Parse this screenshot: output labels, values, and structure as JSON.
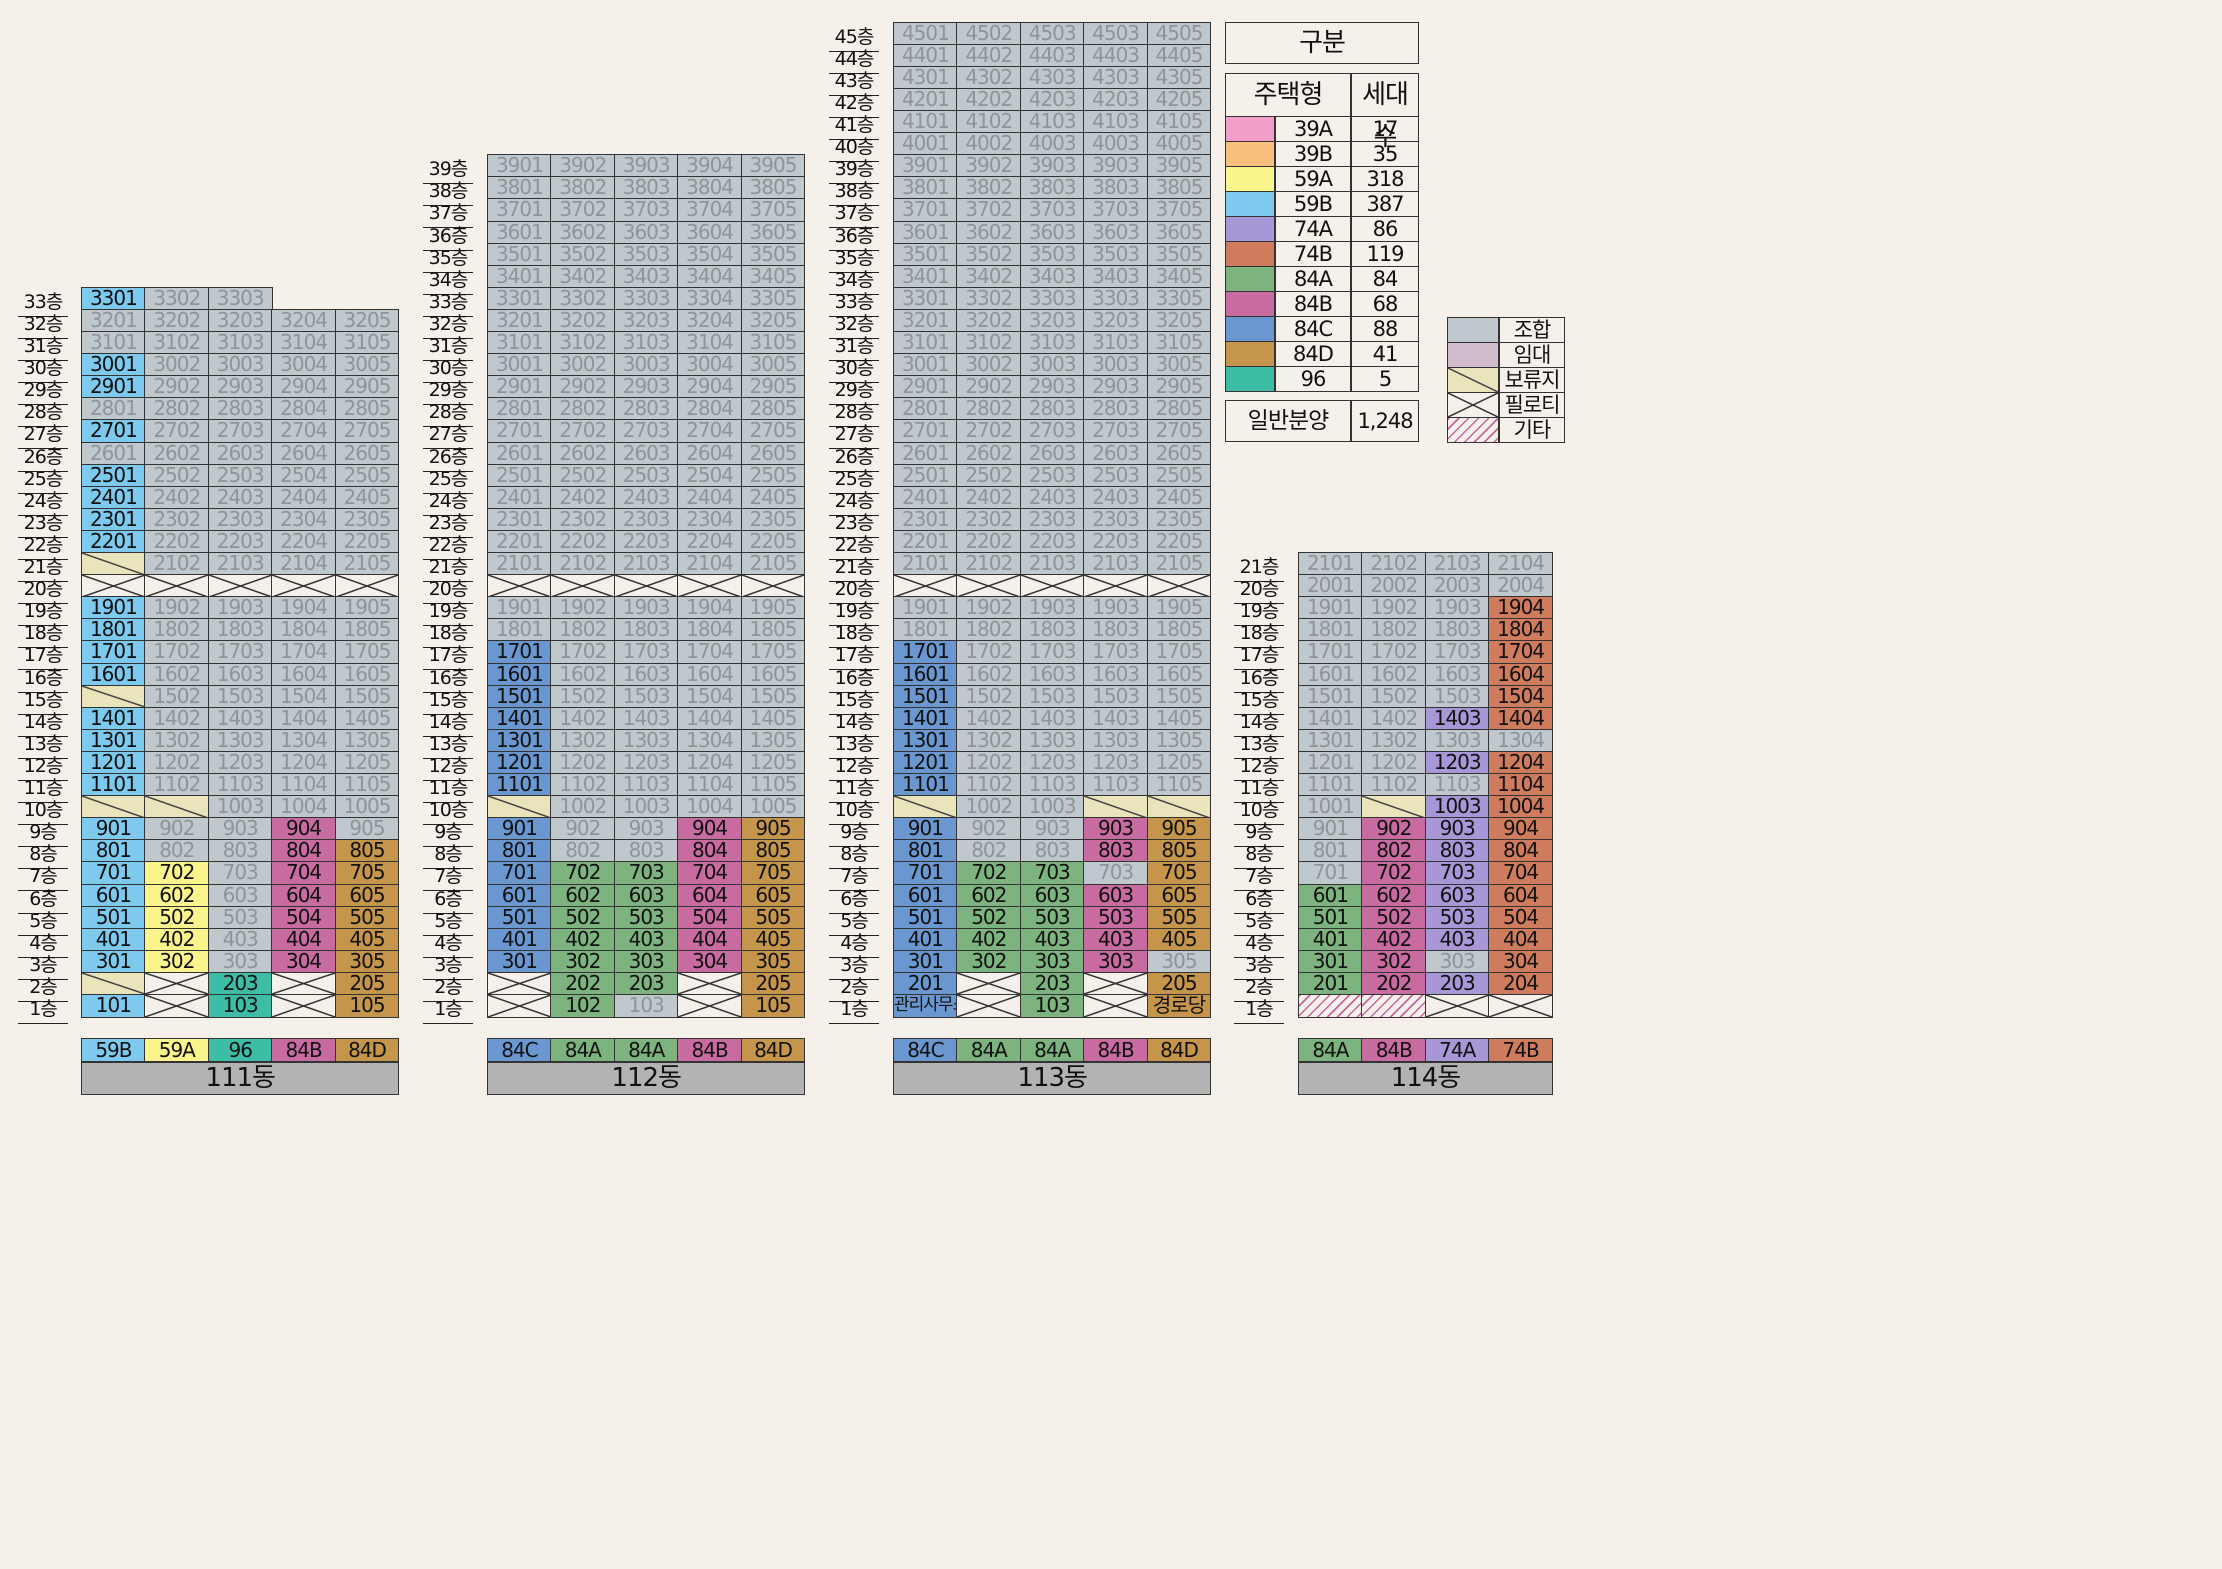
{
  "colors": {
    "39A": "#f39ec8",
    "39B": "#f8c07c",
    "59A": "#f9f58c",
    "59B": "#7ec9ee",
    "74A": "#a897d6",
    "74B": "#cf7b5e",
    "84A": "#7db37e",
    "84B": "#c86ba0",
    "84C": "#6b97d0",
    "84D": "#c4954b",
    "96": "#3dbda5",
    "g": "#bfc8cd",
    "rent": "#d2bccb",
    "res": "#e9e4bb",
    "bg": "#f5f0ea"
  },
  "buildings": [
    {
      "id": "111",
      "name": "111동",
      "top_floor": 33,
      "cols": 5,
      "types": [
        "59B",
        "59A",
        "96",
        "84B",
        "84D"
      ],
      "specials": {
        "21": [
          "res"
        ],
        "20": [
          "pil",
          "pil",
          "pil",
          "pil",
          "pil"
        ],
        "15": [
          "res"
        ],
        "10": [
          "res",
          "res"
        ],
        "2": [
          "res",
          "pil",
          "96:203",
          "pil",
          "84D:205"
        ],
        "1": [
          "59B:101",
          "pil",
          "96:103",
          "pil",
          "84D:105"
        ]
      },
      "colored": {
        "59B": [
          1,
          [
            33,
            30,
            29,
            27,
            25,
            24,
            23,
            22,
            19,
            18,
            17,
            16,
            14,
            13,
            12,
            11,
            9,
            8,
            7,
            6,
            5,
            4,
            3
          ]
        ],
        "59A": [
          2,
          [
            7,
            6,
            5,
            4,
            3
          ]
        ],
        "84B": [
          4,
          [
            9,
            8,
            7,
            6,
            5,
            4,
            3
          ]
        ],
        "84D": [
          5,
          [
            8,
            7,
            6,
            5,
            4,
            3
          ]
        ]
      },
      "top_cols": {
        "33": 3
      }
    },
    {
      "id": "112",
      "name": "112동",
      "top_floor": 39,
      "cols": 5,
      "types": [
        "84C",
        "84A",
        "84A",
        "84B",
        "84D"
      ],
      "specials": {
        "20": [
          "pil",
          "pil",
          "pil",
          "pil",
          "pil"
        ],
        "10": [
          "res"
        ],
        "2": [
          "pil",
          "84A:202",
          "84A:203",
          "pil",
          "84D:205"
        ],
        "1": [
          "pil",
          "84A:102",
          "g:103",
          "pil",
          "84D:105"
        ]
      },
      "colored": {
        "84C": [
          1,
          [
            17,
            16,
            15,
            14,
            13,
            12,
            11,
            9,
            8,
            7,
            6,
            5,
            4,
            3
          ]
        ],
        "84A": [
          2,
          [
            7,
            6,
            5,
            4,
            3
          ]
        ],
        "84A2": [
          3,
          [
            7,
            6,
            5,
            4,
            3
          ]
        ],
        "84B": [
          4,
          [
            9,
            8,
            7,
            6,
            5,
            4,
            3
          ]
        ],
        "84D": [
          5,
          [
            9,
            8,
            7,
            6,
            5,
            4,
            3
          ]
        ]
      },
      "top_cols": {}
    },
    {
      "id": "113",
      "name": "113동",
      "top_floor": 45,
      "cols": 5,
      "types": [
        "84C",
        "84A",
        "84A",
        "84B",
        "84D"
      ],
      "specials": {
        "20": [
          "pil",
          "pil",
          "pil",
          "pil",
          "pil"
        ],
        "10": [
          "res",
          null,
          null,
          "res",
          "res"
        ],
        "3": [
          null,
          null,
          null,
          null,
          "g:305"
        ],
        "2": [
          "84C:201",
          "pil",
          "84A:203",
          "pil",
          "84D:205"
        ],
        "1": [
          "84C:관리사무소",
          "pil",
          "84A:103",
          "pil",
          "84D:경로당"
        ]
      },
      "colored": {
        "84C": [
          1,
          [
            17,
            16,
            15,
            14,
            13,
            12,
            11,
            9,
            8,
            7,
            6,
            5,
            4,
            3
          ]
        ],
        "84A": [
          2,
          [
            7,
            6,
            5,
            4,
            3
          ]
        ],
        "84A2": [
          3,
          [
            7,
            6,
            5,
            4,
            3
          ]
        ],
        "84B": [
          4,
          [
            9,
            8,
            6,
            5,
            4,
            3
          ]
        ],
        "84D": [
          5,
          [
            9,
            8,
            7,
            6,
            5,
            4
          ]
        ]
      },
      "top_cols": {}
    },
    {
      "id": "114",
      "name": "114동",
      "top_floor": 21,
      "cols": 4,
      "types": [
        "84A",
        "84B",
        "74A",
        "74B"
      ],
      "specials": {
        "10": [
          null,
          "res"
        ],
        "1": [
          "etc",
          "etc",
          "pil",
          "pil"
        ]
      },
      "colored": {
        "84A": [
          1,
          [
            6,
            5,
            4,
            3,
            2
          ]
        ],
        "84B": [
          2,
          [
            9,
            8,
            7,
            6,
            5,
            4,
            3,
            2
          ]
        ],
        "74A": [
          3,
          [
            14,
            12,
            10,
            9,
            8,
            7,
            6,
            5,
            4,
            2
          ]
        ],
        "74B": [
          4,
          [
            19,
            18,
            17,
            16,
            15,
            14,
            12,
            11,
            10,
            9,
            8,
            7,
            6,
            5,
            4,
            3,
            2
          ]
        ]
      },
      "top_cols": {}
    }
  ],
  "unit_numbers_note": "unit label = floor number followed by 2-digit line number (e.g. 1701); 113동 repeats line 03 in the 4th column (e.g. 3303)",
  "legend": {
    "header": "구분",
    "col_type": "주택형",
    "col_count": "세대수",
    "rows": [
      {
        "type": "39A",
        "count": "17"
      },
      {
        "type": "39B",
        "count": "35"
      },
      {
        "type": "59A",
        "count": "318"
      },
      {
        "type": "59B",
        "count": "387"
      },
      {
        "type": "74A",
        "count": "86"
      },
      {
        "type": "74B",
        "count": "119"
      },
      {
        "type": "84A",
        "count": "84"
      },
      {
        "type": "84B",
        "count": "68"
      },
      {
        "type": "84C",
        "count": "88"
      },
      {
        "type": "84D",
        "count": "41"
      },
      {
        "type": "96",
        "count": "5"
      }
    ],
    "total_label": "일반분양",
    "total_value": "1,248",
    "categories": [
      {
        "key": "g",
        "label": "조합"
      },
      {
        "key": "rent",
        "label": "임대"
      },
      {
        "key": "res",
        "label": "보류지"
      },
      {
        "key": "pil",
        "label": "필로티"
      },
      {
        "key": "etc",
        "label": "기타"
      }
    ]
  },
  "floor_suffix": "층"
}
